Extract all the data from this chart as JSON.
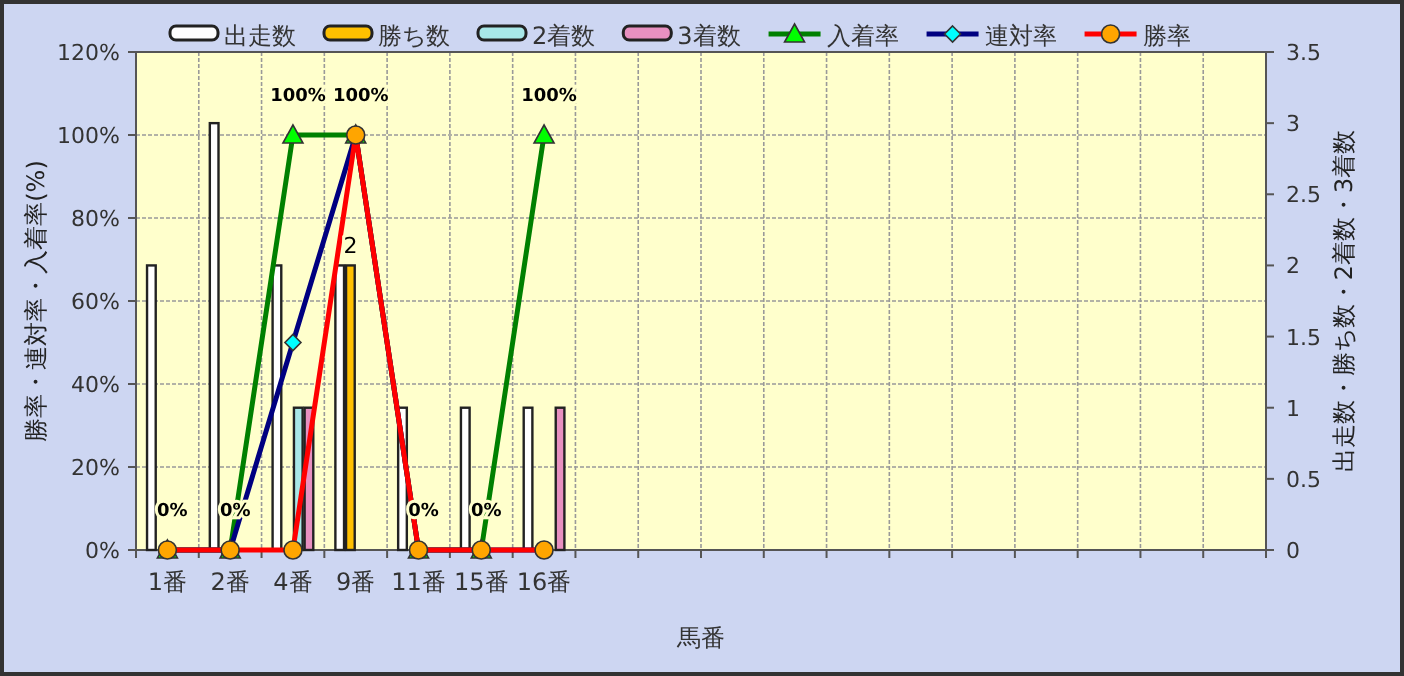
{
  "chart_data": {
    "type": "bar",
    "xlabel": "馬番",
    "ylabel": "勝率・連対率・入着率(%)",
    "y2label": "出走数・勝ち数・2着数・3着数",
    "categories": [
      "1番",
      "2番",
      "4番",
      "9番",
      "11番",
      "15番",
      "16番",
      null,
      null,
      null,
      null,
      null,
      null,
      null,
      null,
      null,
      null,
      null
    ],
    "series": [
      {
        "name": "出走数",
        "axis": "y2",
        "color": "#ffffff",
        "values": [
          2,
          3,
          2,
          2,
          1,
          1,
          1,
          null,
          null,
          null,
          null,
          null,
          null,
          null,
          null,
          null,
          null,
          null
        ]
      },
      {
        "name": "勝ち数",
        "axis": "y2",
        "color": "#ffc000",
        "values": [
          0,
          0,
          0,
          2,
          0,
          0,
          0,
          null,
          null,
          null,
          null,
          null,
          null,
          null,
          null,
          null,
          null,
          null
        ],
        "value_labels": [
          null,
          null,
          null,
          "2",
          null,
          null,
          null,
          null,
          null,
          null,
          null,
          null,
          null,
          null,
          null,
          null,
          null,
          null
        ]
      },
      {
        "name": "2着数",
        "axis": "y2",
        "color": "#a8e8e8",
        "values": [
          0,
          0,
          1,
          0,
          0,
          0,
          0,
          null,
          null,
          null,
          null,
          null,
          null,
          null,
          null,
          null,
          null,
          null
        ]
      },
      {
        "name": "3着数",
        "axis": "y2",
        "color": "#e890c0",
        "values": [
          0,
          0,
          1,
          0,
          0,
          0,
          1,
          null,
          null,
          null,
          null,
          null,
          null,
          null,
          null,
          null,
          null,
          null
        ]
      },
      {
        "name": "入着率",
        "type": "line",
        "color": "#008000",
        "marker": "triangle",
        "colors": [
          "#00ff00",
          "#00ff00",
          "#00ff00",
          "#00ff00",
          "#00ff00",
          "#00ff00",
          "#00ff00",
          null,
          null,
          null,
          null,
          null,
          null,
          null,
          null,
          null,
          null,
          null
        ],
        "values": [
          0,
          0,
          100,
          100,
          0,
          0,
          100,
          null,
          null,
          null,
          null,
          null,
          null,
          null,
          null,
          null,
          null,
          null
        ],
        "value_labels": [
          "0%",
          "0%",
          "100%",
          "100%",
          "0%",
          "0%",
          "100%",
          null,
          null,
          null,
          null,
          null,
          null,
          null,
          null,
          null,
          null,
          null
        ]
      },
      {
        "name": "連対率",
        "type": "line",
        "color": "#000080",
        "marker": "diamond",
        "colors": [
          "#00ffff",
          "#00ffff",
          "#00ffff",
          "#00ffff",
          "#00ffff",
          "#00ffff",
          "#00ffff",
          null,
          null,
          null,
          null,
          null,
          null,
          null,
          null,
          null,
          null,
          null
        ],
        "values": [
          0,
          0,
          50,
          100,
          0,
          0,
          0,
          null,
          null,
          null,
          null,
          null,
          null,
          null,
          null,
          null,
          null,
          null
        ]
      },
      {
        "name": "勝率",
        "type": "line",
        "color": "#ff0000",
        "marker": "circle",
        "colors": [
          "#ffa500",
          "#ffa500",
          "#ffa500",
          "#ffa500",
          "#ffa500",
          "#ffa500",
          "#ffa500",
          null,
          null,
          null,
          null,
          null,
          null,
          null,
          null,
          null,
          null,
          null
        ],
        "values": [
          0,
          0,
          0,
          100,
          0,
          0,
          0,
          null,
          null,
          null,
          null,
          null,
          null,
          null,
          null,
          null,
          null,
          null
        ]
      }
    ],
    "ylim": [
      0,
      120
    ],
    "yticks": [
      {
        "value": 0,
        "label": "0%"
      },
      {
        "value": 20,
        "label": "20%"
      },
      {
        "value": 40,
        "label": "40%"
      },
      {
        "value": 60,
        "label": "60%"
      },
      {
        "value": 80,
        "label": "80%"
      },
      {
        "value": 100,
        "label": "100%"
      },
      {
        "value": 120,
        "label": "120%"
      }
    ],
    "y2lim": [
      0,
      3.5
    ],
    "y2ticks": [
      0,
      0.5,
      1,
      1.5,
      2,
      2.5,
      3,
      3.5
    ],
    "grid": true,
    "legend": "top"
  }
}
